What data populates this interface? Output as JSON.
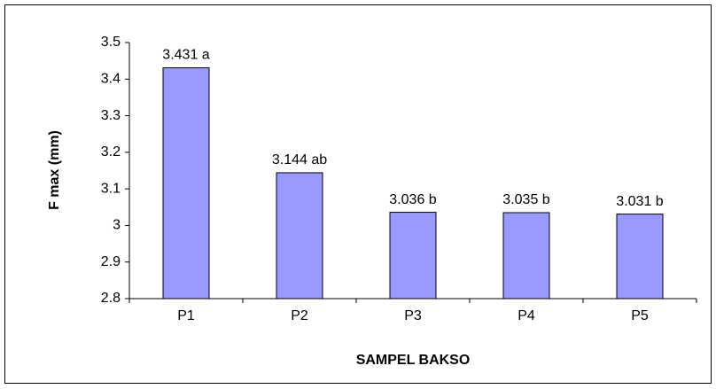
{
  "chart_data": {
    "type": "bar",
    "xlabel": "SAMPEL BAKSO",
    "ylabel": "F max (mm)",
    "categories": [
      "P1",
      "P2",
      "P3",
      "P4",
      "P5"
    ],
    "values": [
      3.431,
      3.144,
      3.036,
      3.035,
      3.031
    ],
    "value_labels": [
      "3.431 a",
      "3.144 ab",
      "3.036 b",
      "3.035 b",
      "3.031 b"
    ],
    "color": "#9999ff",
    "ylim": [
      2.8,
      3.5
    ],
    "yticks": [
      2.8,
      2.9,
      3,
      3.1,
      3.2,
      3.3,
      3.4,
      3.5
    ],
    "grid": false
  }
}
